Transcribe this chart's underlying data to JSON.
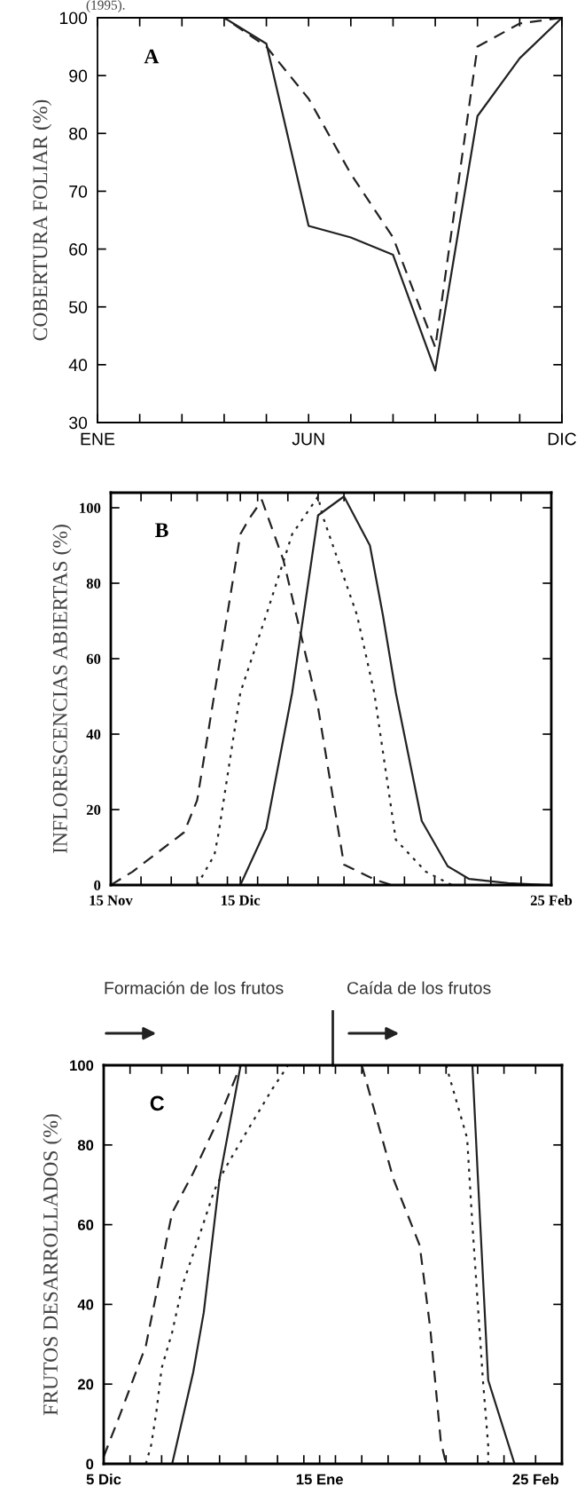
{
  "chart_data": [
    {
      "type": "line",
      "ylabel": "COBERTURA FOLIAR (%)",
      "annotations": [
        "(1995).",
        "A"
      ],
      "categories": [
        "ENE",
        null,
        null,
        null,
        null,
        "JUN",
        null,
        null,
        null,
        null,
        null,
        "DIC"
      ],
      "ylim": [
        30,
        100
      ],
      "yticks": [
        30,
        40,
        50,
        60,
        70,
        80,
        90,
        100
      ],
      "grid": false,
      "legend": false,
      "series": [
        {
          "color": "#222222",
          "line_style": "solid",
          "values": [
            100,
            100,
            100,
            100,
            95.5,
            64,
            62,
            59,
            39,
            83,
            93,
            100
          ]
        },
        {
          "color": "#222222",
          "line_style": "dashed",
          "values": [
            100,
            100,
            100,
            100,
            95,
            86,
            73,
            62,
            43,
            95,
            99,
            100
          ]
        }
      ]
    },
    {
      "type": "line",
      "ylabel": "INFLORESCENCIAS ABIERTAS (%)",
      "annotations": [
        "B"
      ],
      "xlim": [
        "1994-11-15",
        "1995-02-25"
      ],
      "xticks": [
        {
          "value": "1994-11-15",
          "label": "15 Nov"
        },
        {
          "value": "1994-11-22",
          "label": null
        },
        {
          "value": "1994-11-29",
          "label": null
        },
        {
          "value": "1994-12-05",
          "label": null
        },
        {
          "value": "1994-12-12",
          "label": null
        },
        {
          "value": "1994-12-15",
          "label": "15 Dic"
        },
        {
          "value": "1994-12-19",
          "label": null
        },
        {
          "value": "1994-12-26",
          "label": null
        },
        {
          "value": "1995-01-02",
          "label": null
        },
        {
          "value": "1995-01-08",
          "label": null
        },
        {
          "value": "1995-01-15",
          "label": null
        },
        {
          "value": "1995-01-22",
          "label": null
        },
        {
          "value": "1995-01-29",
          "label": null
        },
        {
          "value": "1995-02-05",
          "label": null
        },
        {
          "value": "1995-02-11",
          "label": null
        },
        {
          "value": "1995-02-18",
          "label": null
        },
        {
          "value": "1995-02-25",
          "label": "25 Feb"
        }
      ],
      "ylim": [
        0,
        104
      ],
      "yticks": [
        0,
        20,
        40,
        60,
        80,
        100
      ],
      "grid": false,
      "legend": false,
      "series": [
        {
          "color": "#222222",
          "line_style": "dashed",
          "x": [
            "1994-11-15",
            "1994-11-20",
            "1994-12-02",
            "1994-12-05",
            "1994-12-15",
            "1994-12-17",
            "1994-12-20",
            "1994-12-25",
            "1995-01-02",
            "1995-01-08",
            "1995-01-15",
            "1995-01-19"
          ],
          "values": [
            0,
            3.5,
            14,
            22.5,
            93,
            97,
            102,
            86,
            47,
            5.4,
            1.5,
            0
          ]
        },
        {
          "color": "#222222",
          "line_style": "dotted",
          "x": [
            "1994-12-05",
            "1994-12-09",
            "1994-12-10",
            "1994-12-15",
            "1994-12-21",
            "1994-12-27",
            "1995-01-02",
            "1995-01-03",
            "1995-01-11",
            "1995-01-15",
            "1995-01-20",
            "1995-01-27",
            "1995-02-02"
          ],
          "values": [
            0,
            8,
            14,
            51,
            71.6,
            93,
            103,
            98,
            71.6,
            51,
            12,
            3.5,
            0
          ]
        },
        {
          "color": "#222222",
          "line_style": "solid",
          "x": [
            "1994-12-15",
            "1994-12-21",
            "1994-12-27",
            "1995-01-02",
            "1995-01-08",
            "1995-01-14",
            "1995-01-17",
            "1995-01-20",
            "1995-01-26",
            "1995-02-01",
            "1995-02-06",
            "1995-02-15",
            "1995-02-24"
          ],
          "values": [
            0,
            15,
            51,
            98,
            103,
            90,
            71.6,
            51,
            17,
            5,
            1.6,
            0.5,
            0
          ]
        }
      ]
    },
    {
      "type": "line",
      "ylabel": "FRUTOS DESARROLLADOS (%)",
      "annotations": [
        "Formación de los frutos",
        "Caída de los frutos",
        "C"
      ],
      "xlim": [
        "1994-12-05",
        "1995-03-02"
      ],
      "xticks": [
        {
          "value": "1994-12-05",
          "label": "5 Dic"
        },
        {
          "value": "1994-12-10",
          "label": null
        },
        {
          "value": "1994-12-16",
          "label": null
        },
        {
          "value": "1994-12-21",
          "label": null
        },
        {
          "value": "1994-12-27",
          "label": null
        },
        {
          "value": "1995-01-01",
          "label": null
        },
        {
          "value": "1995-01-07",
          "label": null
        },
        {
          "value": "1995-01-12",
          "label": null
        },
        {
          "value": "1995-01-15",
          "label": "15 Ene"
        },
        {
          "value": "1995-01-18",
          "label": null
        },
        {
          "value": "1995-01-23",
          "label": null
        },
        {
          "value": "1995-01-28",
          "label": null
        },
        {
          "value": "1995-02-03",
          "label": null
        },
        {
          "value": "1995-02-08",
          "label": null
        },
        {
          "value": "1995-02-14",
          "label": null
        },
        {
          "value": "1995-02-19",
          "label": null
        },
        {
          "value": "1995-02-25",
          "label": "25 Feb"
        }
      ],
      "ylim": [
        0,
        100
      ],
      "yticks": [
        0,
        20,
        40,
        60,
        80,
        100
      ],
      "grid": false,
      "legend": false,
      "series": [
        {
          "color": "#222222",
          "line_style": "dashed",
          "x": [
            "1994-12-05",
            "1994-12-08",
            "1994-12-13",
            "1994-12-15",
            "1994-12-17",
            "1994-12-18",
            "1994-12-22",
            "1994-12-27",
            "1994-12-31",
            "1995-01-10",
            "1995-01-23",
            "1995-01-29",
            "1995-02-03",
            "1995-02-05",
            "1995-02-07",
            "1995-02-08"
          ],
          "values": [
            1.8,
            12,
            29.6,
            42.7,
            56.6,
            63,
            73,
            87,
            100,
            null,
            100,
            71.5,
            54.8,
            34,
            5.6,
            0
          ]
        },
        {
          "color": "#222222",
          "line_style": "dotted",
          "x": [
            "1994-12-13",
            "1994-12-14",
            "1994-12-15",
            "1994-12-16",
            "1994-12-18",
            "1994-12-20",
            "1994-12-23",
            "1994-12-26",
            "1994-12-28",
            "1995-01-01",
            "1995-01-06",
            "1995-01-09",
            "1995-01-20",
            "1995-02-08",
            "1995-02-12",
            "1995-02-13",
            "1995-02-15",
            "1995-02-16",
            "1995-02-16"
          ],
          "values": [
            0,
            4.6,
            13,
            24,
            33,
            45,
            56.6,
            68.6,
            74,
            83,
            94,
            100,
            null,
            100,
            81.7,
            60,
            21,
            4.6,
            0
          ]
        },
        {
          "color": "#222222",
          "line_style": "solid",
          "x": [
            "1994-12-18",
            "1994-12-22",
            "1994-12-24",
            "1994-12-27",
            "1994-12-31",
            "1995-01-15",
            "1995-02-13",
            "1995-02-14",
            "1995-02-16",
            "1995-02-21"
          ],
          "values": [
            0,
            23,
            38,
            71.5,
            100,
            null,
            100,
            73,
            21,
            0
          ]
        }
      ]
    }
  ]
}
